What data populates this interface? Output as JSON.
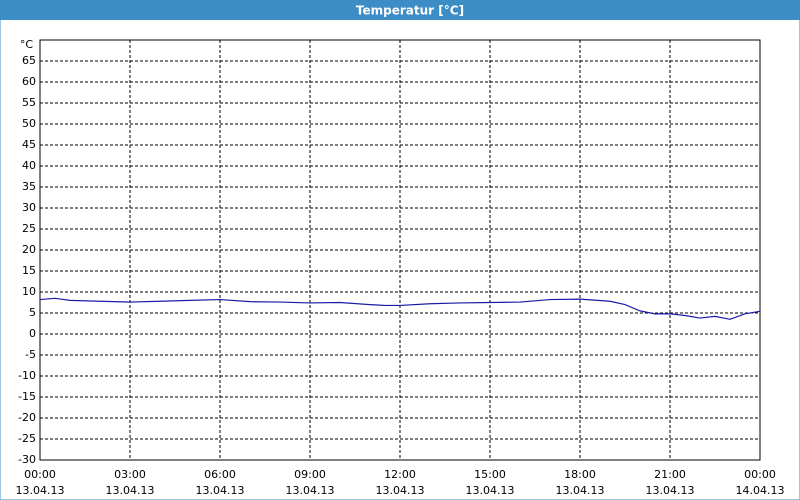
{
  "chart_data": {
    "type": "line",
    "title": "Temperatur [°C]",
    "y_unit": "°C",
    "x": [
      0,
      0.5,
      1,
      2,
      3,
      4,
      5,
      6,
      7,
      8,
      9,
      10,
      11,
      11.5,
      12,
      13,
      14,
      15,
      16,
      17,
      18,
      19,
      19.5,
      20,
      20.5,
      21,
      21.5,
      22,
      22.5,
      23,
      23.5,
      24
    ],
    "series": [
      {
        "name": "Temperatur",
        "color": "#1a1aa6",
        "values": [
          8.2,
          8.5,
          8,
          7.8,
          7.6,
          7.8,
          8,
          8.2,
          7.7,
          7.6,
          7.4,
          7.5,
          7,
          6.8,
          6.8,
          7.2,
          7.4,
          7.5,
          7.6,
          8.2,
          8.3,
          7.8,
          7,
          5.5,
          4.8,
          4.8,
          4.4,
          3.8,
          4.2,
          3.5,
          4.8,
          5.4
        ]
      }
    ],
    "xlim": [
      0,
      24
    ],
    "xticks": [
      {
        "value": 0,
        "label": [
          "00:00",
          "13.04.13"
        ]
      },
      {
        "value": 3,
        "label": [
          "03:00",
          "13.04.13"
        ]
      },
      {
        "value": 6,
        "label": [
          "06:00",
          "13.04.13"
        ]
      },
      {
        "value": 9,
        "label": [
          "09:00",
          "13.04.13"
        ]
      },
      {
        "value": 12,
        "label": [
          "12:00",
          "13.04.13"
        ]
      },
      {
        "value": 15,
        "label": [
          "15:00",
          "13.04.13"
        ]
      },
      {
        "value": 18,
        "label": [
          "18:00",
          "13.04.13"
        ]
      },
      {
        "value": 21,
        "label": [
          "21:00",
          "13.04.13"
        ]
      },
      {
        "value": 24,
        "label": [
          "00:00",
          "14.04.13"
        ]
      }
    ],
    "ylim": [
      -30,
      70
    ],
    "yticks": [
      -30,
      -25,
      -20,
      -15,
      -10,
      -5,
      0,
      5,
      10,
      15,
      20,
      25,
      30,
      35,
      40,
      45,
      50,
      55,
      60,
      65
    ],
    "grid": true
  }
}
